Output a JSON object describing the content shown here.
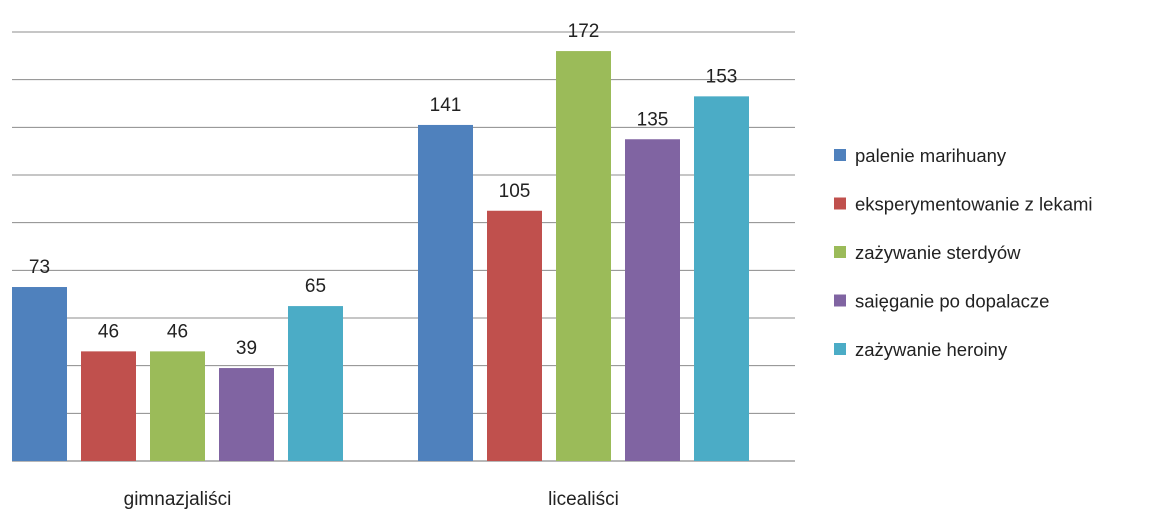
{
  "chart_data": {
    "type": "bar",
    "categories": [
      "gimnazjaliści",
      "licealiści"
    ],
    "series": [
      {
        "name": "palenie marihuany",
        "values": [
          73,
          141
        ],
        "color": "#4F81BD"
      },
      {
        "name": "eksperymentowanie z lekami",
        "values": [
          46,
          105
        ],
        "color": "#C0504D"
      },
      {
        "name": "zażywanie sterdyów",
        "values": [
          46,
          172
        ],
        "color": "#9BBB59"
      },
      {
        "name": "saięganie po dopalacze",
        "values": [
          39,
          135
        ],
        "color": "#8064A2"
      },
      {
        "name": "zażywanie heroiny",
        "values": [
          65,
          153
        ],
        "color": "#4BACC6"
      }
    ],
    "title": "",
    "xlabel": "",
    "ylabel": "",
    "ylim": [
      0,
      180
    ],
    "grid": true,
    "legend": "right",
    "data_labels": true
  }
}
